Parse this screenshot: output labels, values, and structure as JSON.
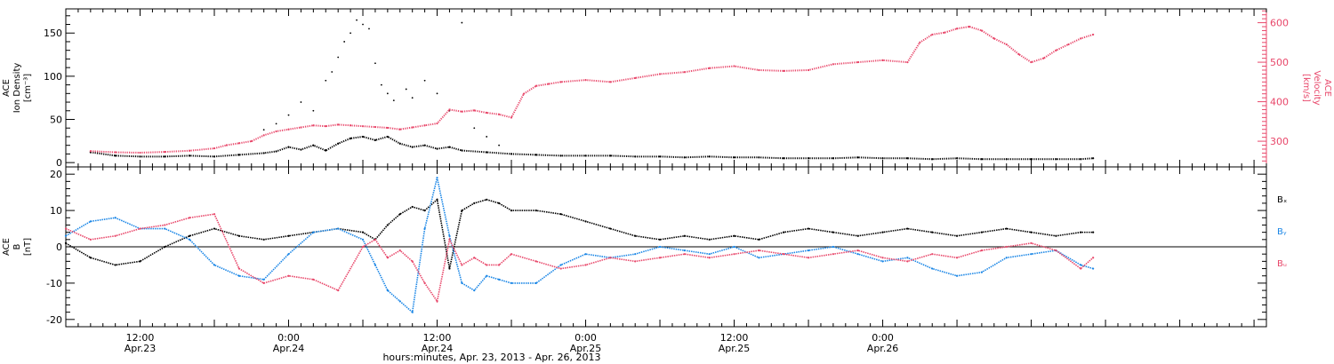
{
  "colors": {
    "density": "#000000",
    "velocity": "#e8476a",
    "bx": "#000000",
    "by": "#1a86e6",
    "bz": "#e8476a"
  },
  "chart_data": [
    {
      "type": "scatter",
      "panel": "top",
      "left_axis": {
        "label_lines": [
          "ACE",
          "Ion Density",
          "[cm⁻³]"
        ],
        "ylim": [
          -5,
          178
        ],
        "ticks": [
          0,
          50,
          100,
          150
        ]
      },
      "right_axis": {
        "label_lines": [
          "ACE",
          "Velocity",
          "[km/s]"
        ],
        "ylim": [
          235,
          635
        ],
        "ticks": [
          300,
          400,
          500,
          600
        ]
      },
      "series": [
        {
          "key": "density",
          "axis": "left",
          "x": [
            4,
            8,
            12,
            16,
            20,
            24,
            28,
            32,
            34,
            36,
            38,
            40,
            42,
            44,
            46,
            48,
            50,
            52,
            54,
            56,
            58,
            60,
            62,
            64,
            68,
            72,
            76,
            80,
            84,
            88,
            92,
            96,
            100,
            104,
            108,
            112,
            116,
            120,
            124,
            128,
            132,
            136,
            140,
            144,
            148,
            152,
            156,
            160,
            164,
            166
          ],
          "y": [
            12,
            8,
            7,
            7,
            8,
            7,
            9,
            11,
            13,
            18,
            15,
            20,
            14,
            22,
            28,
            30,
            26,
            30,
            22,
            18,
            20,
            16,
            18,
            14,
            12,
            10,
            9,
            8,
            8,
            8,
            7,
            7,
            6,
            7,
            6,
            6,
            5,
            5,
            5,
            6,
            5,
            5,
            4,
            5,
            4,
            4,
            4,
            4,
            4,
            5
          ]
        },
        {
          "key": "velocity",
          "axis": "right",
          "x": [
            4,
            8,
            12,
            16,
            20,
            24,
            26,
            28,
            30,
            32,
            34,
            36,
            38,
            40,
            42,
            44,
            46,
            48,
            50,
            52,
            54,
            56,
            58,
            60,
            62,
            64,
            66,
            68,
            70,
            72,
            74,
            76,
            78,
            80,
            84,
            88,
            92,
            96,
            100,
            104,
            108,
            112,
            116,
            120,
            124,
            128,
            132,
            136,
            138,
            140,
            142,
            144,
            146,
            148,
            150,
            152,
            154,
            156,
            158,
            160,
            162,
            164,
            166
          ],
          "y": [
            275,
            272,
            271,
            273,
            276,
            282,
            290,
            295,
            300,
            315,
            325,
            330,
            335,
            340,
            338,
            342,
            340,
            338,
            336,
            334,
            330,
            335,
            340,
            345,
            380,
            375,
            378,
            372,
            368,
            360,
            420,
            440,
            445,
            450,
            455,
            450,
            460,
            470,
            475,
            485,
            490,
            480,
            478,
            480,
            495,
            500,
            505,
            500,
            550,
            570,
            575,
            585,
            590,
            580,
            560,
            545,
            520,
            500,
            510,
            530,
            545,
            560,
            570
          ]
        }
      ],
      "scatter_points": [
        {
          "x": 32,
          "y": 38
        },
        {
          "x": 34,
          "y": 45
        },
        {
          "x": 36,
          "y": 55
        },
        {
          "x": 38,
          "y": 70
        },
        {
          "x": 40,
          "y": 60
        },
        {
          "x": 42,
          "y": 95
        },
        {
          "x": 43,
          "y": 105
        },
        {
          "x": 44,
          "y": 122
        },
        {
          "x": 45,
          "y": 140
        },
        {
          "x": 46,
          "y": 150
        },
        {
          "x": 47,
          "y": 165
        },
        {
          "x": 48,
          "y": 160
        },
        {
          "x": 49,
          "y": 155
        },
        {
          "x": 50,
          "y": 115
        },
        {
          "x": 51,
          "y": 90
        },
        {
          "x": 52,
          "y": 80
        },
        {
          "x": 53,
          "y": 72
        },
        {
          "x": 55,
          "y": 85
        },
        {
          "x": 56,
          "y": 75
        },
        {
          "x": 58,
          "y": 95
        },
        {
          "x": 60,
          "y": 80
        },
        {
          "x": 62,
          "y": 60
        },
        {
          "x": 64,
          "y": 162
        },
        {
          "x": 66,
          "y": 40
        },
        {
          "x": 68,
          "y": 30
        },
        {
          "x": 70,
          "y": 20
        }
      ]
    },
    {
      "type": "line",
      "panel": "bottom",
      "left_axis": {
        "label_lines": [
          "ACE",
          "B",
          "[nT]"
        ],
        "ylim": [
          -22,
          22
        ],
        "ticks": [
          -20,
          -10,
          0,
          10,
          20
        ]
      },
      "zero_line": true,
      "series": [
        {
          "key": "bx",
          "name": "Bₓ",
          "x": [
            0,
            4,
            8,
            12,
            16,
            20,
            24,
            28,
            32,
            36,
            40,
            44,
            48,
            50,
            52,
            54,
            56,
            58,
            60,
            62,
            64,
            66,
            68,
            70,
            72,
            76,
            80,
            84,
            88,
            92,
            96,
            100,
            104,
            108,
            112,
            116,
            120,
            124,
            128,
            132,
            136,
            140,
            144,
            148,
            152,
            156,
            160,
            164,
            166
          ],
          "y": [
            1,
            -3,
            -5,
            -4,
            0,
            3,
            5,
            3,
            2,
            3,
            4,
            5,
            4,
            2,
            6,
            9,
            11,
            10,
            13,
            -6,
            10,
            12,
            13,
            12,
            10,
            10,
            9,
            7,
            5,
            3,
            2,
            3,
            2,
            3,
            2,
            4,
            5,
            4,
            3,
            4,
            5,
            4,
            3,
            4,
            5,
            4,
            3,
            4,
            4
          ]
        },
        {
          "key": "by",
          "name": "Bᵧ",
          "x": [
            0,
            4,
            8,
            12,
            16,
            20,
            24,
            28,
            32,
            36,
            40,
            44,
            48,
            50,
            52,
            54,
            56,
            58,
            60,
            62,
            64,
            66,
            68,
            70,
            72,
            76,
            80,
            84,
            88,
            92,
            96,
            100,
            104,
            108,
            112,
            116,
            120,
            124,
            128,
            132,
            136,
            140,
            144,
            148,
            152,
            156,
            160,
            164,
            166
          ],
          "y": [
            3,
            7,
            8,
            5,
            5,
            2,
            -5,
            -8,
            -9,
            -2,
            4,
            5,
            2,
            -5,
            -12,
            -15,
            -18,
            5,
            19,
            3,
            -10,
            -12,
            -8,
            -9,
            -10,
            -10,
            -5,
            -2,
            -3,
            -2,
            0,
            -1,
            -2,
            0,
            -3,
            -2,
            -1,
            0,
            -2,
            -4,
            -3,
            -6,
            -8,
            -7,
            -3,
            -2,
            -1,
            -5,
            -6
          ]
        },
        {
          "key": "bz",
          "name": "Bᵤ",
          "x": [
            0,
            4,
            8,
            12,
            16,
            20,
            24,
            28,
            32,
            36,
            40,
            44,
            48,
            50,
            52,
            54,
            56,
            58,
            60,
            62,
            64,
            66,
            68,
            70,
            72,
            76,
            80,
            84,
            88,
            92,
            96,
            100,
            104,
            108,
            112,
            116,
            120,
            124,
            128,
            132,
            136,
            140,
            144,
            148,
            152,
            156,
            160,
            164,
            166
          ],
          "y": [
            5,
            2,
            3,
            5,
            6,
            8,
            9,
            -6,
            -10,
            -8,
            -9,
            -12,
            0,
            2,
            -3,
            -1,
            -4,
            -10,
            -15,
            2,
            -5,
            -3,
            -5,
            -5,
            -2,
            -4,
            -6,
            -5,
            -3,
            -4,
            -3,
            -2,
            -3,
            -2,
            -1,
            -2,
            -3,
            -2,
            -1,
            -3,
            -4,
            -2,
            -3,
            -1,
            0,
            1,
            -1,
            -6,
            -3
          ]
        }
      ]
    }
  ],
  "x_axis": {
    "xlim": [
      0,
      194
    ],
    "major_ticks": [
      {
        "x": 12,
        "time": "12:00",
        "date": "Apr.23"
      },
      {
        "x": 36,
        "time": "0:00",
        "date": "Apr.24"
      },
      {
        "x": 60,
        "time": "12:00",
        "date": "Apr.24"
      },
      {
        "x": 84,
        "time": "0:00",
        "date": "Apr.25"
      },
      {
        "x": 108,
        "time": "12:00",
        "date": "Apr.25"
      },
      {
        "x": 132,
        "time": "0:00",
        "date": "Apr.26"
      }
    ],
    "title": "hours:minutes, Apr. 23, 2013 - Apr. 26, 2013"
  },
  "labels": {
    "top_left_line1": "ACE",
    "top_left_line2": "Ion Density",
    "top_left_line3": "[cm⁻³]",
    "top_right_line1": "ACE",
    "top_right_line2": "Velocity",
    "top_right_line3": "[km/s]",
    "bottom_left_line1": "ACE",
    "bottom_left_line2": "B",
    "bottom_left_line3": "[nT]",
    "legend_bx": "Bₓ",
    "legend_by": "Bᵧ",
    "legend_bz": "Bᵤ"
  }
}
